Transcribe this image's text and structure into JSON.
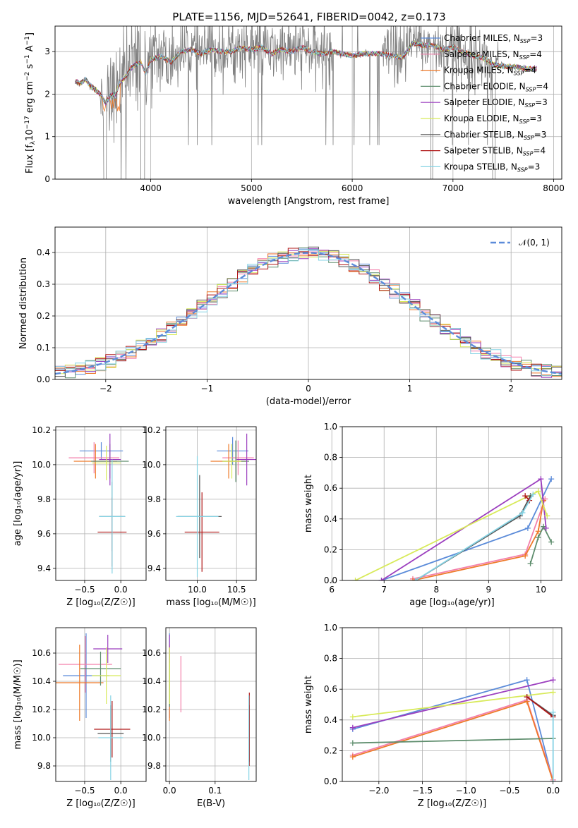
{
  "figure": {
    "title": "PLATE=1156, MJD=52641, FIBERID=0042, z=0.173"
  },
  "legend_items": [
    {
      "label": "Chabrier MILES, N",
      "sub": "SSP",
      "suffix": "=3",
      "color": "#5b8bd9"
    },
    {
      "label": "Salpeter MILES, N",
      "sub": "SSP",
      "suffix": "=4",
      "color": "#f37fab"
    },
    {
      "label": "Kroupa MILES, N",
      "sub": "SSP",
      "suffix": "=4",
      "color": "#ee7a2a"
    },
    {
      "label": "Chabrier ELODIE, N",
      "sub": "SSP",
      "suffix": "=4",
      "color": "#5f8e6e"
    },
    {
      "label": "Salpeter ELODIE, N",
      "sub": "SSP",
      "suffix": "=3",
      "color": "#9c3fbf"
    },
    {
      "label": "Kroupa ELODIE, N",
      "sub": "SSP",
      "suffix": "=3",
      "color": "#d8ea5a"
    },
    {
      "label": "Chabrier STELIB, N",
      "sub": "SSP",
      "suffix": "=3",
      "color": "#555555"
    },
    {
      "label": "Salpeter STELIB, N",
      "sub": "SSP",
      "suffix": "=4",
      "color": "#b01818"
    },
    {
      "label": "Kroupa STELIB, N",
      "sub": "SSP",
      "suffix": "=3",
      "color": "#86d3e4"
    }
  ],
  "chart_data": [
    {
      "type": "line",
      "panel": "spectrum",
      "xlabel": "wavelength [Angstrom, rest frame]",
      "ylabel_parts": [
        "Flux [f",
        "λ",
        "10",
        "−17",
        " erg cm",
        "−2",
        " s",
        "−1",
        " A",
        "−1",
        "]"
      ],
      "xlim": [
        3050,
        8080
      ],
      "ylim": [
        0,
        3.6
      ],
      "xticks": [
        4000,
        5000,
        6000,
        7000,
        8000
      ],
      "yticks": [
        0,
        1,
        2,
        3
      ],
      "data_color": "#808080",
      "model_x": [
        3250,
        3300,
        3350,
        3400,
        3450,
        3500,
        3550,
        3600,
        3650,
        3700,
        3750,
        3800,
        3850,
        3900,
        3950,
        4000,
        4100,
        4200,
        4300,
        4400,
        4500,
        4600,
        4700,
        4800,
        4900,
        5000,
        5100,
        5200,
        5300,
        5400,
        5500,
        5600,
        5700,
        5800,
        5900,
        6000,
        6100,
        6200,
        6300,
        6400,
        6500,
        6600,
        6700,
        6800,
        6900,
        7000,
        7100,
        7200,
        7300,
        7400,
        7500,
        7600,
        7700,
        7800
      ],
      "model_y": [
        2.3,
        2.25,
        2.35,
        2.2,
        2.1,
        2.0,
        1.8,
        1.95,
        2.0,
        2.3,
        2.4,
        2.6,
        2.7,
        2.75,
        2.5,
        2.8,
        2.9,
        2.75,
        3.0,
        3.05,
        2.95,
        3.05,
        3.0,
        3.0,
        3.1,
        3.05,
        3.1,
        2.95,
        3.05,
        3.0,
        3.1,
        3.0,
        2.95,
        3.0,
        2.95,
        2.9,
        2.95,
        2.95,
        2.95,
        2.9,
        2.85,
        3.2,
        3.15,
        3.15,
        3.05,
        3.1,
        3.0,
        2.9,
        2.85,
        2.7,
        2.65,
        2.65,
        2.6,
        2.6
      ]
    },
    {
      "type": "area",
      "panel": "residual-histogram",
      "xlabel": "(data-model)/error",
      "ylabel": "Normed distribution",
      "xlim": [
        -2.5,
        2.5
      ],
      "ylim": [
        0,
        0.48
      ],
      "xticks": [
        -2,
        -1,
        0,
        1,
        2
      ],
      "yticks": [
        0.0,
        0.1,
        0.2,
        0.3,
        0.4
      ],
      "grid": true,
      "bin_width": 0.1,
      "reference_curve": {
        "name": "𝒩(0, 1)",
        "color": "#5b8bd9"
      },
      "legend_position": "top-right"
    },
    {
      "type": "scatter",
      "panel": "age-vs-Z",
      "xlabel": "Z [log₁₀(Z/Z☉)]",
      "ylabel": "age  [log₁₀(age/yr)]",
      "xlim": [
        -0.9,
        0.35
      ],
      "ylim": [
        9.33,
        10.22
      ],
      "xticks": [
        -0.5,
        0.0
      ],
      "yticks": [
        9.4,
        9.6,
        9.8,
        10.0,
        10.2
      ],
      "points": [
        {
          "x": -0.27,
          "y": 10.08,
          "xerr": 0.3,
          "yerr": 0.05,
          "color": "#5b8bd9"
        },
        {
          "x": -0.37,
          "y": 10.04,
          "xerr": 0.35,
          "yerr": 0.09,
          "color": "#f37fab"
        },
        {
          "x": -0.35,
          "y": 10.02,
          "xerr": 0.3,
          "yerr": 0.1,
          "color": "#ee7a2a"
        },
        {
          "x": -0.15,
          "y": 10.02,
          "xerr": 0.26,
          "yerr": 0.1,
          "color": "#5f8e6e"
        },
        {
          "x": -0.15,
          "y": 10.03,
          "xerr": 0.15,
          "yerr": 0.15,
          "color": "#9c3fbf"
        },
        {
          "x": -0.2,
          "y": 10.01,
          "xerr": 0.2,
          "yerr": 0.1,
          "color": "#d8ea5a"
        },
        {
          "x": -0.12,
          "y": 9.7,
          "xerr": 0.18,
          "yerr": 0.2,
          "color": "#555555"
        },
        {
          "x": -0.12,
          "y": 9.61,
          "xerr": 0.2,
          "yerr": 0.2,
          "color": "#b01818"
        },
        {
          "x": -0.12,
          "y": 9.7,
          "xerr": 0.18,
          "yerr": 0.33,
          "color": "#86d3e4"
        }
      ]
    },
    {
      "type": "scatter",
      "panel": "age-vs-mass",
      "xlabel": "mass [log₁₀(M/M☉)]",
      "ylabel": "",
      "xlim": [
        9.6,
        10.75
      ],
      "ylim": [
        9.33,
        10.22
      ],
      "xticks": [
        10.0,
        10.5
      ],
      "yticks": [
        9.4,
        9.6,
        9.8,
        10.0,
        10.2
      ],
      "points": [
        {
          "x": 10.45,
          "y": 10.08,
          "xerr": 0.2,
          "yerr": 0.08,
          "color": "#5b8bd9"
        },
        {
          "x": 10.52,
          "y": 10.04,
          "xerr": 0.2,
          "yerr": 0.1,
          "color": "#f37fab"
        },
        {
          "x": 10.4,
          "y": 10.02,
          "xerr": 0.23,
          "yerr": 0.1,
          "color": "#ee7a2a"
        },
        {
          "x": 10.49,
          "y": 10.02,
          "xerr": 0.17,
          "yerr": 0.12,
          "color": "#5f8e6e"
        },
        {
          "x": 10.63,
          "y": 10.03,
          "xerr": 0.13,
          "yerr": 0.15,
          "color": "#9c3fbf"
        },
        {
          "x": 10.44,
          "y": 10.02,
          "xerr": 0.12,
          "yerr": 0.1,
          "color": "#d8ea5a"
        },
        {
          "x": 10.03,
          "y": 9.7,
          "xerr": 0.28,
          "yerr": 0.24,
          "color": "#555555"
        },
        {
          "x": 10.06,
          "y": 9.61,
          "xerr": 0.22,
          "yerr": 0.23,
          "color": "#b01818"
        },
        {
          "x": 10.0,
          "y": 9.7,
          "xerr": 0.27,
          "yerr": 0.35,
          "color": "#86d3e4"
        }
      ]
    },
    {
      "type": "line",
      "panel": "mass-weight-vs-age",
      "xlabel": "age  [log₁₀(age/yr)]",
      "ylabel": "mass weight",
      "xlim": [
        6.2,
        10.4
      ],
      "ylim": [
        0,
        1.0
      ],
      "xticks": [
        6,
        7,
        8,
        9,
        10
      ],
      "yticks": [
        0.0,
        0.2,
        0.4,
        0.6,
        0.8,
        1.0
      ],
      "grid": true,
      "series": [
        {
          "color": "#5b8bd9",
          "points": [
            [
              6.95,
              0.0
            ],
            [
              9.75,
              0.34
            ],
            [
              10.2,
              0.66
            ]
          ]
        },
        {
          "color": "#f37fab",
          "points": [
            [
              7.55,
              0.01
            ],
            [
              9.7,
              0.17
            ],
            [
              10.08,
              0.53
            ]
          ]
        },
        {
          "color": "#ee7a2a",
          "points": [
            [
              7.55,
              0.0
            ],
            [
              9.7,
              0.16
            ],
            [
              9.95,
              0.32
            ],
            [
              10.05,
              0.52
            ]
          ]
        },
        {
          "color": "#5f8e6e",
          "points": [
            [
              9.8,
              0.11
            ],
            [
              9.95,
              0.28
            ],
            [
              10.05,
              0.35
            ],
            [
              10.2,
              0.25
            ]
          ]
        },
        {
          "color": "#9c3fbf",
          "points": [
            [
              6.95,
              0.0
            ],
            [
              10.0,
              0.66
            ],
            [
              10.1,
              0.34
            ]
          ]
        },
        {
          "color": "#d8ea5a",
          "points": [
            [
              6.45,
              0.0
            ],
            [
              9.95,
              0.58
            ],
            [
              10.12,
              0.42
            ]
          ]
        },
        {
          "color": "#555555",
          "points": [
            [
              7.6,
              0.0
            ],
            [
              9.6,
              0.42
            ],
            [
              9.8,
              0.55
            ]
          ]
        },
        {
          "color": "#b01818",
          "points": [
            [
              9.7,
              0.55
            ],
            [
              9.78,
              0.52
            ]
          ]
        },
        {
          "color": "#86d3e4",
          "points": [
            [
              7.6,
              0.0
            ],
            [
              9.65,
              0.44
            ],
            [
              9.85,
              0.56
            ]
          ]
        }
      ]
    },
    {
      "type": "scatter",
      "panel": "mass-vs-Z",
      "xlabel": "Z [log₁₀(Z/Z☉)]",
      "ylabel": "mass [log₁₀(M/M☉)]",
      "xlim": [
        -0.9,
        0.35
      ],
      "ylim": [
        9.69,
        10.78
      ],
      "xticks": [
        -0.5,
        0.0
      ],
      "yticks": [
        9.8,
        10.0,
        10.2,
        10.4,
        10.6
      ],
      "points": [
        {
          "x": -0.48,
          "y": 10.44,
          "xerr": 0.32,
          "yerr": 0.3,
          "color": "#5b8bd9"
        },
        {
          "x": -0.49,
          "y": 10.52,
          "xerr": 0.37,
          "yerr": 0.2,
          "color": "#f37fab"
        },
        {
          "x": -0.57,
          "y": 10.39,
          "xerr": 0.33,
          "yerr": 0.27,
          "color": "#ee7a2a"
        },
        {
          "x": -0.28,
          "y": 10.49,
          "xerr": 0.28,
          "yerr": 0.12,
          "color": "#5f8e6e"
        },
        {
          "x": -0.18,
          "y": 10.63,
          "xerr": 0.2,
          "yerr": 0.1,
          "color": "#9c3fbf"
        },
        {
          "x": -0.2,
          "y": 10.44,
          "xerr": 0.2,
          "yerr": 0.2,
          "color": "#d8ea5a"
        },
        {
          "x": -0.14,
          "y": 10.03,
          "xerr": 0.18,
          "yerr": 0.2,
          "color": "#555555"
        },
        {
          "x": -0.12,
          "y": 10.06,
          "xerr": 0.25,
          "yerr": 0.2,
          "color": "#b01818"
        },
        {
          "x": -0.14,
          "y": 10.0,
          "xerr": 0.17,
          "yerr": 0.3,
          "color": "#86d3e4"
        }
      ]
    },
    {
      "type": "scatter",
      "panel": "mass-vs-EBV",
      "xlabel": "E(B-V)",
      "ylabel": "",
      "xlim": [
        -0.008,
        0.19
      ],
      "ylim": [
        9.69,
        10.78
      ],
      "xticks": [
        0.0,
        0.1
      ],
      "yticks": [
        9.8,
        10.0,
        10.2,
        10.4,
        10.6
      ],
      "points": [
        {
          "x": 0.0,
          "y": 10.44,
          "xerr": 0,
          "yerr": 0.3,
          "color": "#5b8bd9"
        },
        {
          "x": 0.025,
          "y": 10.38,
          "xerr": 0,
          "yerr": 0.2,
          "color": "#f37fab"
        },
        {
          "x": 0.0,
          "y": 10.39,
          "xerr": 0,
          "yerr": 0.27,
          "color": "#ee7a2a"
        },
        {
          "x": 0.0,
          "y": 10.42,
          "xerr": 0,
          "yerr": 0.2,
          "color": "#5f8e6e"
        },
        {
          "x": 0.0,
          "y": 10.63,
          "xerr": 0,
          "yerr": 0.1,
          "color": "#9c3fbf"
        },
        {
          "x": 0.0,
          "y": 10.44,
          "xerr": 0,
          "yerr": 0.2,
          "color": "#d8ea5a"
        },
        {
          "x": 0.175,
          "y": 10.03,
          "xerr": 0,
          "yerr": 0.2,
          "color": "#555555"
        },
        {
          "x": 0.175,
          "y": 10.06,
          "xerr": 0,
          "yerr": 0.26,
          "color": "#b01818"
        },
        {
          "x": 0.174,
          "y": 10.0,
          "xerr": 0,
          "yerr": 0.3,
          "color": "#86d3e4"
        }
      ]
    },
    {
      "type": "line",
      "panel": "mass-weight-vs-Z",
      "xlabel": "Z [log₁₀(Z/Z☉)]",
      "ylabel": "mass weight",
      "xlim": [
        -2.42,
        0.1
      ],
      "ylim": [
        0,
        1.0
      ],
      "xticks": [
        -2.0,
        -1.5,
        -1.0,
        -0.5,
        0.0
      ],
      "yticks": [
        0.0,
        0.2,
        0.4,
        0.6,
        0.8,
        1.0
      ],
      "grid": true,
      "series": [
        {
          "color": "#5b8bd9",
          "points": [
            [
              -2.3,
              0.34
            ],
            [
              -0.3,
              0.66
            ],
            [
              0.0,
              0.0
            ]
          ]
        },
        {
          "color": "#f37fab",
          "points": [
            [
              -2.3,
              0.17
            ],
            [
              -0.3,
              0.53
            ],
            [
              0.0,
              0.01
            ]
          ]
        },
        {
          "color": "#ee7a2a",
          "points": [
            [
              -2.3,
              0.16
            ],
            [
              -0.3,
              0.52
            ],
            [
              0.0,
              0.0
            ]
          ]
        },
        {
          "color": "#5f8e6e",
          "points": [
            [
              -2.3,
              0.25
            ],
            [
              0.0,
              0.28
            ]
          ]
        },
        {
          "color": "#9c3fbf",
          "points": [
            [
              -2.3,
              0.35
            ],
            [
              0.0,
              0.66
            ]
          ]
        },
        {
          "color": "#d8ea5a",
          "points": [
            [
              -2.3,
              0.42
            ],
            [
              0.0,
              0.58
            ]
          ]
        },
        {
          "color": "#555555",
          "points": [
            [
              -0.3,
              0.55
            ],
            [
              0.0,
              0.43
            ]
          ]
        },
        {
          "color": "#b01818",
          "points": [
            [
              -0.3,
              0.55
            ],
            [
              0.0,
              0.42
            ]
          ]
        },
        {
          "color": "#86d3e4",
          "points": [
            [
              0.0,
              0.0
            ],
            [
              0.0,
              0.45
            ]
          ]
        }
      ]
    }
  ]
}
